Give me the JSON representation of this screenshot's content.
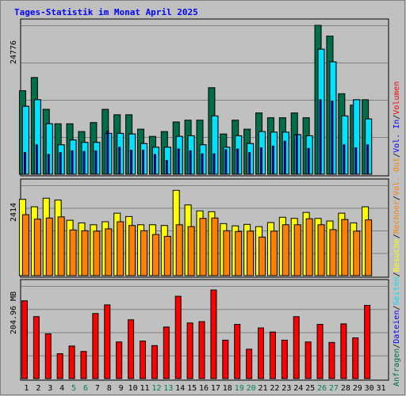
{
  "title": "Tages-Statistik im Monat April 2025",
  "colors": {
    "background": "#c0c0c0",
    "title": "#0000ff",
    "hits": "#006e46",
    "files": "#00d8ff",
    "pages": "#00e0ff",
    "sites": "#0000ff",
    "visits": "#ffff00",
    "kbytes": "#ff8000",
    "volume": "#ff0000",
    "axis": "#000000",
    "gridline": "#808080",
    "weekend_label": "#00805c"
  },
  "chart_data": [
    {
      "type": "bar",
      "name": "upper",
      "max_label": "24776",
      "ylim": [
        0,
        24776
      ],
      "grid": true,
      "categories": [
        "1",
        "2",
        "3",
        "4",
        "5",
        "6",
        "7",
        "8",
        "9",
        "10",
        "11",
        "12",
        "13",
        "14",
        "15",
        "16",
        "17",
        "18",
        "19",
        "20",
        "21",
        "22",
        "23",
        "24",
        "25",
        "26",
        "27",
        "28",
        "29",
        "30",
        "31"
      ],
      "series": [
        {
          "name": "Anfragen",
          "color": "#006e46",
          "values": [
            13900,
            16100,
            10800,
            8400,
            8400,
            7100,
            8600,
            10800,
            9900,
            9900,
            7500,
            6300,
            7100,
            8700,
            9000,
            9000,
            14400,
            6700,
            9000,
            7500,
            10200,
            9400,
            9400,
            10200,
            9400,
            24776,
            23000,
            13400,
            11500,
            12400,
            0
          ]
        },
        {
          "name": "Dateien",
          "color": "#00d8ff",
          "values": [
            11300,
            12400,
            8400,
            4900,
            5700,
            5300,
            5300,
            6800,
            6800,
            6700,
            5100,
            4500,
            4500,
            6300,
            6400,
            4900,
            9700,
            4500,
            6400,
            5100,
            7100,
            7000,
            7000,
            6600,
            6400,
            20800,
            18700,
            9700,
            12400,
            9200,
            0
          ]
        },
        {
          "name": "Seiten",
          "color": "#00e0ff",
          "values": [
            11300,
            12400,
            8400,
            4900,
            5700,
            5300,
            5300,
            6800,
            6800,
            6700,
            5100,
            4500,
            4500,
            6300,
            6400,
            4900,
            9700,
            4500,
            6400,
            5100,
            7100,
            7000,
            7000,
            6600,
            6400,
            20800,
            18700,
            9700,
            12400,
            9200,
            0
          ]
        },
        {
          "name": "Rechner",
          "color": "#0000ff",
          "values": [
            3600,
            4900,
            3300,
            3600,
            3900,
            3800,
            3900,
            7200,
            4500,
            4000,
            4000,
            3300,
            2300,
            4200,
            3900,
            3400,
            3400,
            4100,
            4200,
            3600,
            4400,
            4700,
            5500,
            6600,
            4300,
            12400,
            12200,
            4900,
            4400,
            4900,
            0
          ]
        }
      ]
    },
    {
      "type": "bar",
      "name": "middle",
      "max_label": "2414",
      "ylim": [
        0,
        2414
      ],
      "grid": true,
      "categories": [
        "1",
        "2",
        "3",
        "4",
        "5",
        "6",
        "7",
        "8",
        "9",
        "10",
        "11",
        "12",
        "13",
        "14",
        "15",
        "16",
        "17",
        "18",
        "19",
        "20",
        "21",
        "22",
        "23",
        "24",
        "25",
        "26",
        "27",
        "28",
        "29",
        "30",
        "31"
      ],
      "series": [
        {
          "name": "Besuche",
          "color": "#ffff00",
          "values": [
            2040,
            1840,
            2070,
            2020,
            1480,
            1410,
            1360,
            1440,
            1670,
            1580,
            1360,
            1360,
            1340,
            2280,
            1890,
            1730,
            1710,
            1390,
            1330,
            1370,
            1310,
            1420,
            1560,
            1530,
            1690,
            1530,
            1460,
            1670,
            1410,
            1840,
            0
          ]
        },
        {
          "name": "Rechner",
          "color": "#ff8000",
          "values": [
            1630,
            1510,
            1540,
            1570,
            1220,
            1200,
            1190,
            1250,
            1440,
            1340,
            1200,
            1100,
            1050,
            1360,
            1310,
            1530,
            1540,
            1200,
            1180,
            1190,
            1030,
            1190,
            1360,
            1360,
            1520,
            1360,
            1230,
            1500,
            1190,
            1490,
            0
          ]
        }
      ]
    },
    {
      "type": "bar",
      "name": "lower",
      "max_label": "204.96 MB",
      "ylim": [
        0,
        204.96
      ],
      "grid": true,
      "categories": [
        "1",
        "2",
        "3",
        "4",
        "5",
        "6",
        "7",
        "8",
        "9",
        "10",
        "11",
        "12",
        "13",
        "14",
        "15",
        "16",
        "17",
        "18",
        "19",
        "20",
        "21",
        "22",
        "23",
        "24",
        "25",
        "26",
        "27",
        "28",
        "29",
        "30",
        "31"
      ],
      "series": [
        {
          "name": "Volumen",
          "color": "#ff0000",
          "values": [
            172,
            137,
            99,
            55,
            72,
            60,
            144,
            163,
            81,
            130,
            83,
            73,
            114,
            182,
            123,
            126,
            196,
            85,
            120,
            65,
            112,
            103,
            85,
            137,
            81,
            120,
            80,
            121,
            90,
            162,
            0
          ]
        }
      ]
    }
  ],
  "right_legend": [
    {
      "text": "Anfragen",
      "color": "#006e46"
    },
    {
      "text": "/",
      "color": "#000000"
    },
    {
      "text": "Dateien",
      "color": "#0000ff"
    },
    {
      "text": "/",
      "color": "#000000"
    },
    {
      "text": "Seiten",
      "color": "#00e0ff"
    },
    {
      "text": "/",
      "color": "#000000"
    },
    {
      "text": "Besuche",
      "color": "#ffff00"
    },
    {
      "text": "/",
      "color": "#000000"
    },
    {
      "text": "Rechner",
      "color": "#ff8000"
    },
    {
      "text": "/",
      "color": "#000000"
    },
    {
      "text": "Vol. Out",
      "color": "#ff8000"
    },
    {
      "text": "/",
      "color": "#000000"
    },
    {
      "text": "Vol. In",
      "color": "#0000ff"
    },
    {
      "text": "/",
      "color": "#000000"
    },
    {
      "text": "Volumen",
      "color": "#ff0000"
    }
  ],
  "weekend_days": [
    "5",
    "6",
    "12",
    "13",
    "19",
    "20",
    "26",
    "27"
  ]
}
